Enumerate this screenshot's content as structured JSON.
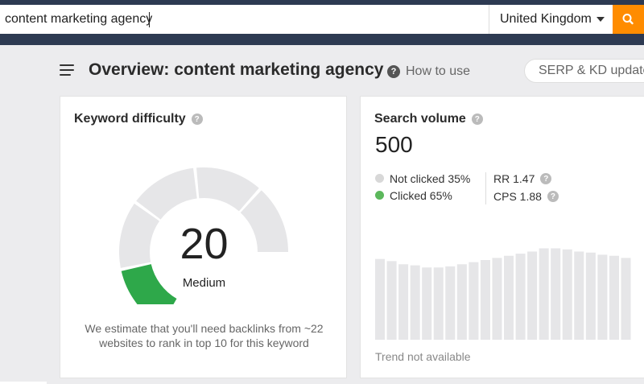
{
  "search": {
    "query": "content marketing agency",
    "country": "United Kingdom"
  },
  "header": {
    "title": "Overview: content marketing agency",
    "how_to_use": "How to use",
    "serp_button": "SERP & KD update"
  },
  "keyword_difficulty": {
    "title": "Keyword difficulty",
    "help": "?",
    "score": "20",
    "score_value": 20,
    "label": "Medium",
    "estimate": "We estimate that you'll need backlinks from ~22 websites to rank in top 10 for this keyword"
  },
  "search_volume": {
    "title": "Search volume",
    "help": "?",
    "value": "500",
    "not_clicked": "Not clicked 35%",
    "clicked": "Clicked 65%",
    "rr": "RR 1.47",
    "cps": "CPS 1.88",
    "trend_note": "Trend not available",
    "trend_values": [
      0.76,
      0.74,
      0.71,
      0.7,
      0.68,
      0.68,
      0.69,
      0.71,
      0.73,
      0.75,
      0.77,
      0.79,
      0.81,
      0.83,
      0.86,
      0.86,
      0.85,
      0.83,
      0.82,
      0.8,
      0.79,
      0.77
    ]
  },
  "colors": {
    "topbar": "#2d3a52",
    "accent_orange": "#ff8c00",
    "gauge_green": "#2ea84a",
    "gauge_gray": "#e6e6e8",
    "clicked_dot": "#5cb85c",
    "not_clicked_dot": "#d8d8d8",
    "trend_bar": "#e6e6e8"
  },
  "icons": {
    "search_button": "search-icon",
    "menu": "hamburger-menu-icon",
    "help": "question-circle-icon",
    "dropdown": "caret-down-icon"
  }
}
